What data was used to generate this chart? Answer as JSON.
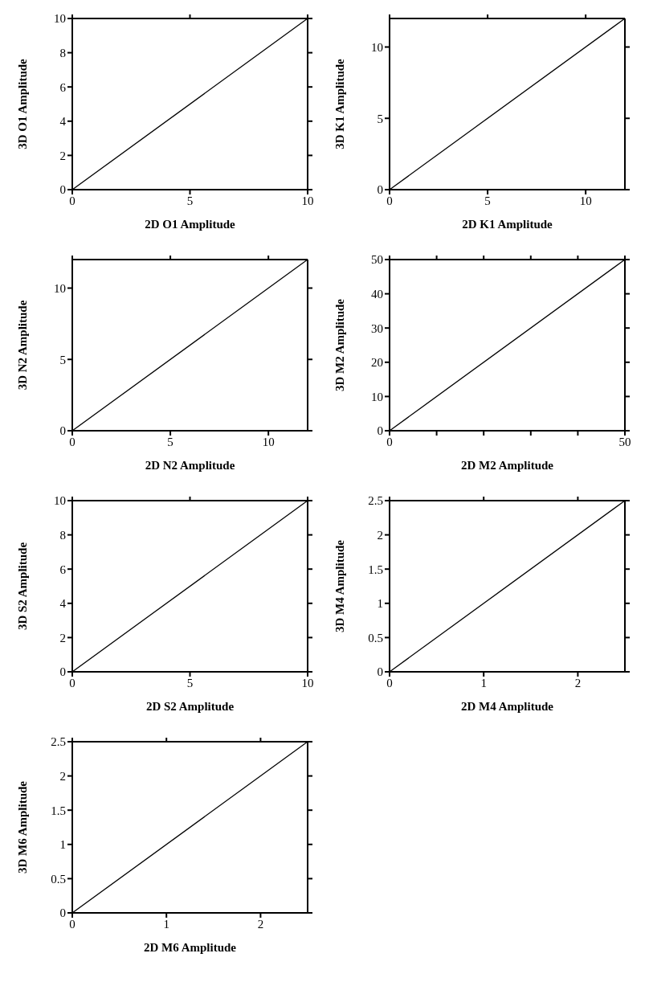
{
  "chart_data": [
    {
      "type": "line",
      "xlabel": "2D O1 Amplitude",
      "ylabel": "3D O1 Amplitude",
      "xlim": [
        0,
        10
      ],
      "ylim": [
        0,
        10
      ],
      "xticks": [
        0,
        5,
        10
      ],
      "yticks": [
        0,
        2,
        4,
        6,
        8,
        10
      ],
      "marker": "none",
      "line_style": "solid",
      "series": [
        {
          "color": "#000000",
          "x": [
            0,
            10
          ],
          "values": [
            0,
            10
          ]
        }
      ]
    },
    {
      "type": "line",
      "xlabel": "2D K1 Amplitude",
      "ylabel": "3D K1 Amplitude",
      "xlim": [
        0,
        12
      ],
      "ylim": [
        0,
        12
      ],
      "xticks": [
        0,
        5,
        10
      ],
      "yticks": [
        0,
        5,
        10
      ],
      "marker": "none",
      "line_style": "solid",
      "series": [
        {
          "color": "#000000",
          "x": [
            0,
            12
          ],
          "values": [
            0,
            12
          ]
        }
      ]
    },
    {
      "type": "line",
      "xlabel": "2D N2 Amplitude",
      "ylabel": "3D N2 Amplitude",
      "xlim": [
        0,
        12
      ],
      "ylim": [
        0,
        12
      ],
      "xticks": [
        0,
        5,
        10
      ],
      "yticks": [
        0,
        5,
        10
      ],
      "marker": "none",
      "line_style": "solid",
      "series": [
        {
          "color": "#000000",
          "x": [
            0,
            12
          ],
          "values": [
            0,
            12
          ]
        }
      ]
    },
    {
      "type": "line",
      "xlabel": "2D M2 Amplitude",
      "ylabel": "3D M2 Amplitude",
      "xlim": [
        0,
        50
      ],
      "ylim": [
        0,
        50
      ],
      "xticks": [
        0,
        {
          "value": 10,
          "label": null
        },
        {
          "value": 20,
          "label": null
        },
        {
          "value": 30,
          "label": null
        },
        {
          "value": 40,
          "label": null
        },
        50
      ],
      "yticks": [
        0,
        10,
        20,
        30,
        40,
        50
      ],
      "marker": "none",
      "line_style": "solid",
      "series": [
        {
          "color": "#000000",
          "x": [
            0,
            50
          ],
          "values": [
            0,
            50
          ]
        }
      ]
    },
    {
      "type": "line",
      "xlabel": "2D S2 Amplitude",
      "ylabel": "3D S2 Amplitude",
      "xlim": [
        0,
        10
      ],
      "ylim": [
        0,
        10
      ],
      "xticks": [
        0,
        5,
        10
      ],
      "yticks": [
        0,
        2,
        4,
        6,
        8,
        10
      ],
      "marker": "none",
      "line_style": "solid",
      "series": [
        {
          "color": "#000000",
          "x": [
            0,
            10
          ],
          "values": [
            0,
            10
          ]
        }
      ]
    },
    {
      "type": "line",
      "xlabel": "2D M4 Amplitude",
      "ylabel": "3D M4 Amplitude",
      "xlim": [
        0,
        2.5
      ],
      "ylim": [
        0,
        2.5
      ],
      "xticks": [
        0,
        1,
        2
      ],
      "yticks": [
        0,
        0.5,
        1,
        1.5,
        2,
        2.5
      ],
      "marker": "none",
      "line_style": "solid",
      "series": [
        {
          "color": "#000000",
          "x": [
            0,
            2.5
          ],
          "values": [
            0,
            2.5
          ]
        }
      ]
    },
    {
      "type": "line",
      "xlabel": "2D M6 Amplitude",
      "ylabel": "3D M6 Amplitude",
      "xlim": [
        0,
        2.5
      ],
      "ylim": [
        0,
        2.5
      ],
      "xticks": [
        0,
        1,
        2
      ],
      "yticks": [
        0,
        0.5,
        1,
        1.5,
        2,
        2.5
      ],
      "marker": "none",
      "line_style": "solid",
      "series": [
        {
          "color": "#000000",
          "x": [
            0,
            2.5
          ],
          "values": [
            0,
            2.5
          ]
        }
      ]
    }
  ]
}
